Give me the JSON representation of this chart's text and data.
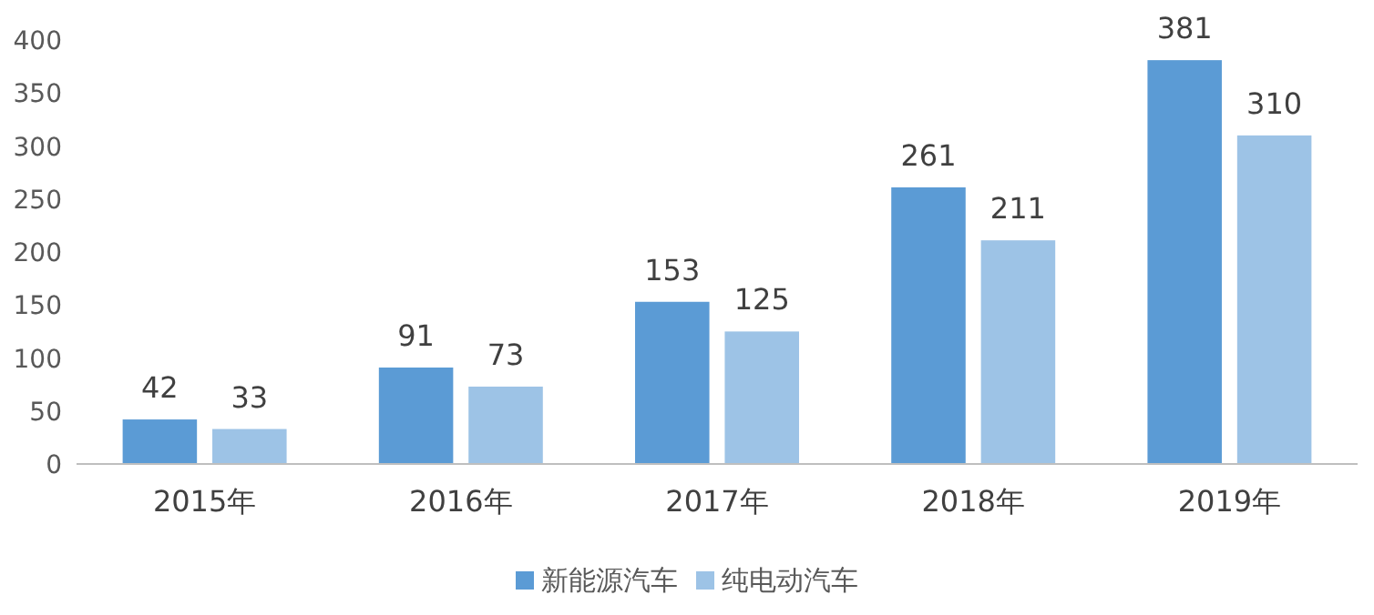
{
  "chart_data": {
    "type": "bar",
    "categories": [
      "2015年",
      "2016年",
      "2017年",
      "2018年",
      "2019年"
    ],
    "series": [
      {
        "name": "新能源汽车",
        "color": "#5b9bd5",
        "values": [
          42,
          91,
          153,
          261,
          381
        ]
      },
      {
        "name": "纯电动汽车",
        "color": "#9dc3e6",
        "values": [
          33,
          73,
          125,
          211,
          310
        ]
      }
    ],
    "ylim": [
      0,
      400
    ],
    "yticks": [
      0,
      50,
      100,
      150,
      200,
      250,
      300,
      350,
      400
    ],
    "data_labels": true,
    "legend": "bottom",
    "grid": false
  }
}
